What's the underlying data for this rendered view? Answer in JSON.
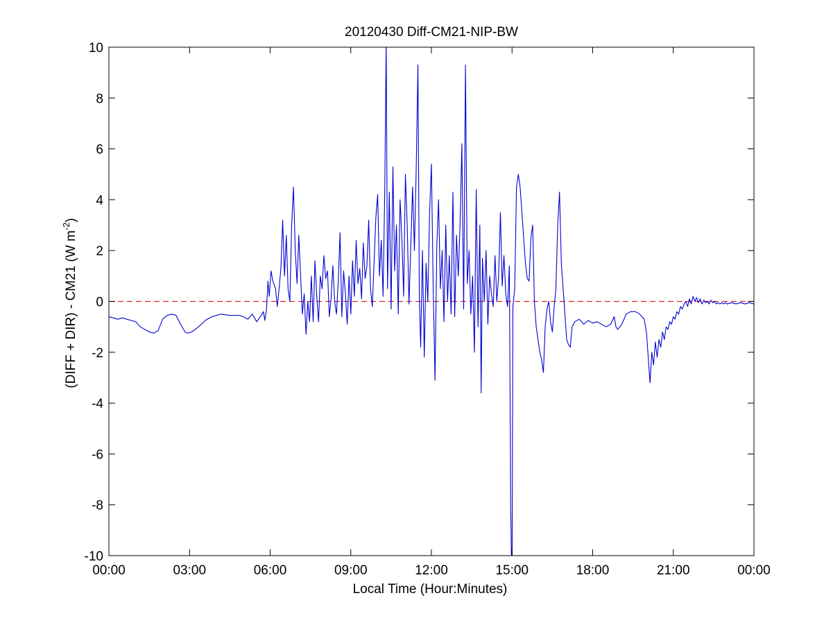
{
  "chart_data": {
    "type": "line",
    "title": "20120430 Diff-CM21-NIP-BW",
    "xlabel": "Local Time (Hour:Minutes)",
    "ylabel": {
      "prefix": "(DIFF + DIR) - CM21 (W m",
      "superscript": "-2",
      "suffix": ")"
    },
    "xlim": [
      0,
      1440
    ],
    "ylim": [
      -10,
      10
    ],
    "x_ticks": [
      0,
      180,
      360,
      540,
      720,
      900,
      1080,
      1260,
      1440
    ],
    "x_tick_labels": [
      "00:00",
      "03:00",
      "06:00",
      "09:00",
      "12:00",
      "15:00",
      "18:00",
      "21:00",
      "00:00"
    ],
    "y_ticks": [
      -10,
      -8,
      -6,
      -4,
      -2,
      0,
      2,
      4,
      6,
      8,
      10
    ],
    "y_tick_labels": [
      "-10",
      "-8",
      "-6",
      "-4",
      "-2",
      "0",
      "2",
      "4",
      "6",
      "8",
      "10"
    ],
    "grid": false,
    "reference_line": {
      "y": 0,
      "style": "dashed",
      "color": "#d9262b"
    },
    "series": [
      {
        "color": "#0000d0",
        "x_unit_minutes": true,
        "points": [
          [
            0,
            -0.6
          ],
          [
            10,
            -0.65
          ],
          [
            20,
            -0.7
          ],
          [
            30,
            -0.65
          ],
          [
            40,
            -0.7
          ],
          [
            50,
            -0.75
          ],
          [
            60,
            -0.8
          ],
          [
            70,
            -1.0
          ],
          [
            80,
            -1.1
          ],
          [
            90,
            -1.2
          ],
          [
            100,
            -1.25
          ],
          [
            110,
            -1.15
          ],
          [
            120,
            -0.7
          ],
          [
            130,
            -0.55
          ],
          [
            140,
            -0.5
          ],
          [
            150,
            -0.55
          ],
          [
            160,
            -0.9
          ],
          [
            170,
            -1.2
          ],
          [
            175,
            -1.25
          ],
          [
            185,
            -1.2
          ],
          [
            200,
            -1.0
          ],
          [
            215,
            -0.75
          ],
          [
            230,
            -0.6
          ],
          [
            250,
            -0.5
          ],
          [
            270,
            -0.55
          ],
          [
            290,
            -0.55
          ],
          [
            300,
            -0.6
          ],
          [
            310,
            -0.7
          ],
          [
            320,
            -0.5
          ],
          [
            330,
            -0.8
          ],
          [
            340,
            -0.55
          ],
          [
            345,
            -0.4
          ],
          [
            348,
            -0.75
          ],
          [
            352,
            -0.3
          ],
          [
            355,
            0.8
          ],
          [
            358,
            0.2
          ],
          [
            362,
            1.2
          ],
          [
            366,
            0.8
          ],
          [
            372,
            0.5
          ],
          [
            376,
            -0.2
          ],
          [
            380,
            0.5
          ],
          [
            384,
            1.3
          ],
          [
            388,
            3.2
          ],
          [
            392,
            1.0
          ],
          [
            396,
            2.6
          ],
          [
            400,
            0.5
          ],
          [
            404,
            0.0
          ],
          [
            408,
            3.0
          ],
          [
            412,
            4.5
          ],
          [
            416,
            2.0
          ],
          [
            420,
            0.7
          ],
          [
            424,
            2.6
          ],
          [
            428,
            1.0
          ],
          [
            432,
            -0.5
          ],
          [
            436,
            0.3
          ],
          [
            440,
            -1.3
          ],
          [
            444,
            0.0
          ],
          [
            448,
            -0.8
          ],
          [
            452,
            1.0
          ],
          [
            456,
            -0.8
          ],
          [
            460,
            1.6
          ],
          [
            464,
            0.2
          ],
          [
            468,
            -0.8
          ],
          [
            472,
            1.0
          ],
          [
            476,
            0.5
          ],
          [
            480,
            1.8
          ],
          [
            484,
            0.9
          ],
          [
            488,
            1.2
          ],
          [
            492,
            -0.6
          ],
          [
            496,
            0.1
          ],
          [
            500,
            1.4
          ],
          [
            504,
            0.0
          ],
          [
            508,
            -0.5
          ],
          [
            512,
            0.8
          ],
          [
            516,
            2.7
          ],
          [
            520,
            -0.6
          ],
          [
            524,
            1.2
          ],
          [
            528,
            0.3
          ],
          [
            532,
            -0.9
          ],
          [
            536,
            1.0
          ],
          [
            540,
            -0.5
          ],
          [
            544,
            1.6
          ],
          [
            548,
            0.2
          ],
          [
            552,
            2.4
          ],
          [
            556,
            0.7
          ],
          [
            560,
            1.3
          ],
          [
            564,
            0.1
          ],
          [
            568,
            2.3
          ],
          [
            572,
            0.9
          ],
          [
            576,
            1.4
          ],
          [
            580,
            3.2
          ],
          [
            584,
            0.5
          ],
          [
            588,
            -0.2
          ],
          [
            592,
            1.5
          ],
          [
            596,
            3.3
          ],
          [
            600,
            4.2
          ],
          [
            604,
            1.0
          ],
          [
            608,
            2.4
          ],
          [
            612,
            0.2
          ],
          [
            616,
            4.5
          ],
          [
            619,
            10.2
          ],
          [
            622,
            0.5
          ],
          [
            626,
            4.3
          ],
          [
            630,
            -0.3
          ],
          [
            634,
            5.3
          ],
          [
            638,
            1.2
          ],
          [
            642,
            3.0
          ],
          [
            646,
            -0.5
          ],
          [
            650,
            4.0
          ],
          [
            654,
            2.5
          ],
          [
            658,
            0.2
          ],
          [
            662,
            5.0
          ],
          [
            666,
            3.0
          ],
          [
            670,
            -0.1
          ],
          [
            674,
            2.2
          ],
          [
            678,
            4.5
          ],
          [
            682,
            2.0
          ],
          [
            686,
            5.1
          ],
          [
            690,
            9.3
          ],
          [
            693,
            0.2
          ],
          [
            696,
            -1.8
          ],
          [
            700,
            2.0
          ],
          [
            704,
            -2.2
          ],
          [
            708,
            1.5
          ],
          [
            712,
            0.0
          ],
          [
            716,
            3.5
          ],
          [
            720,
            5.4
          ],
          [
            724,
            0.5
          ],
          [
            728,
            -3.1
          ],
          [
            732,
            2.2
          ],
          [
            736,
            4.0
          ],
          [
            740,
            0.5
          ],
          [
            744,
            2.0
          ],
          [
            748,
            -0.8
          ],
          [
            752,
            3.0
          ],
          [
            756,
            0.0
          ],
          [
            760,
            1.8
          ],
          [
            764,
            -0.5
          ],
          [
            768,
            4.3
          ],
          [
            772,
            -0.6
          ],
          [
            776,
            2.6
          ],
          [
            780,
            1.0
          ],
          [
            784,
            3.0
          ],
          [
            788,
            6.2
          ],
          [
            792,
            -0.3
          ],
          [
            796,
            9.3
          ],
          [
            800,
            0.7
          ],
          [
            804,
            2.0
          ],
          [
            808,
            -0.5
          ],
          [
            812,
            1.0
          ],
          [
            816,
            -2.0
          ],
          [
            820,
            4.4
          ],
          [
            824,
            -1.0
          ],
          [
            828,
            3.0
          ],
          [
            831,
            -3.6
          ],
          [
            834,
            1.7
          ],
          [
            838,
            0.0
          ],
          [
            842,
            2.0
          ],
          [
            846,
            -0.9
          ],
          [
            850,
            1.0
          ],
          [
            854,
            0.3
          ],
          [
            858,
            -0.2
          ],
          [
            862,
            1.8
          ],
          [
            866,
            0.0
          ],
          [
            870,
            1.0
          ],
          [
            874,
            3.5
          ],
          [
            878,
            0.6
          ],
          [
            882,
            1.8
          ],
          [
            886,
            0.3
          ],
          [
            890,
            -0.2
          ],
          [
            894,
            1.4
          ],
          [
            897,
            -8.0
          ],
          [
            899,
            -10.5
          ],
          [
            900,
            -10.5
          ],
          [
            902,
            -0.2
          ],
          [
            906,
            0.5
          ],
          [
            910,
            4.5
          ],
          [
            914,
            5.0
          ],
          [
            918,
            4.5
          ],
          [
            922,
            3.5
          ],
          [
            926,
            2.5
          ],
          [
            930,
            1.5
          ],
          [
            934,
            0.9
          ],
          [
            938,
            0.8
          ],
          [
            942,
            2.5
          ],
          [
            946,
            3.0
          ],
          [
            950,
            0.0
          ],
          [
            954,
            -1.0
          ],
          [
            958,
            -1.5
          ],
          [
            962,
            -2.0
          ],
          [
            966,
            -2.3
          ],
          [
            970,
            -2.8
          ],
          [
            974,
            -1.0
          ],
          [
            978,
            -0.3
          ],
          [
            982,
            0.0
          ],
          [
            986,
            -0.8
          ],
          [
            990,
            -1.2
          ],
          [
            994,
            -0.2
          ],
          [
            998,
            0.5
          ],
          [
            1002,
            3.0
          ],
          [
            1006,
            4.3
          ],
          [
            1010,
            1.5
          ],
          [
            1014,
            0.5
          ],
          [
            1018,
            -0.5
          ],
          [
            1022,
            -1.5
          ],
          [
            1026,
            -1.7
          ],
          [
            1030,
            -1.8
          ],
          [
            1034,
            -1.0
          ],
          [
            1040,
            -0.8
          ],
          [
            1050,
            -0.7
          ],
          [
            1060,
            -0.9
          ],
          [
            1070,
            -0.75
          ],
          [
            1080,
            -0.85
          ],
          [
            1090,
            -0.8
          ],
          [
            1100,
            -0.9
          ],
          [
            1110,
            -1.0
          ],
          [
            1120,
            -0.9
          ],
          [
            1128,
            -0.6
          ],
          [
            1132,
            -1.0
          ],
          [
            1136,
            -1.1
          ],
          [
            1145,
            -0.9
          ],
          [
            1155,
            -0.5
          ],
          [
            1165,
            -0.4
          ],
          [
            1175,
            -0.4
          ],
          [
            1185,
            -0.5
          ],
          [
            1190,
            -0.6
          ],
          [
            1195,
            -0.7
          ],
          [
            1200,
            -1.2
          ],
          [
            1204,
            -2.2
          ],
          [
            1208,
            -3.2
          ],
          [
            1212,
            -2.0
          ],
          [
            1216,
            -2.5
          ],
          [
            1220,
            -1.6
          ],
          [
            1224,
            -2.2
          ],
          [
            1228,
            -1.5
          ],
          [
            1232,
            -1.8
          ],
          [
            1236,
            -1.2
          ],
          [
            1240,
            -1.5
          ],
          [
            1244,
            -1.0
          ],
          [
            1248,
            -1.1
          ],
          [
            1252,
            -0.8
          ],
          [
            1256,
            -0.9
          ],
          [
            1260,
            -0.6
          ],
          [
            1264,
            -0.7
          ],
          [
            1268,
            -0.4
          ],
          [
            1272,
            -0.5
          ],
          [
            1276,
            -0.2
          ],
          [
            1280,
            -0.3
          ],
          [
            1284,
            -0.1
          ],
          [
            1288,
            0.0
          ],
          [
            1292,
            -0.2
          ],
          [
            1296,
            0.1
          ],
          [
            1300,
            -0.1
          ],
          [
            1304,
            0.2
          ],
          [
            1308,
            0.0
          ],
          [
            1312,
            0.15
          ],
          [
            1316,
            -0.05
          ],
          [
            1320,
            0.1
          ],
          [
            1324,
            -0.1
          ],
          [
            1328,
            0.05
          ],
          [
            1332,
            -0.05
          ],
          [
            1336,
            0.0
          ],
          [
            1340,
            -0.1
          ],
          [
            1344,
            0.05
          ],
          [
            1348,
            -0.05
          ],
          [
            1352,
            0.0
          ],
          [
            1356,
            -0.1
          ],
          [
            1360,
            -0.05
          ],
          [
            1364,
            -0.1
          ],
          [
            1368,
            -0.05
          ],
          [
            1372,
            -0.1
          ],
          [
            1376,
            -0.05
          ],
          [
            1380,
            -0.1
          ],
          [
            1390,
            -0.05
          ],
          [
            1400,
            -0.1
          ],
          [
            1410,
            -0.05
          ],
          [
            1420,
            -0.1
          ],
          [
            1430,
            -0.05
          ],
          [
            1440,
            -0.1
          ]
        ]
      }
    ]
  }
}
